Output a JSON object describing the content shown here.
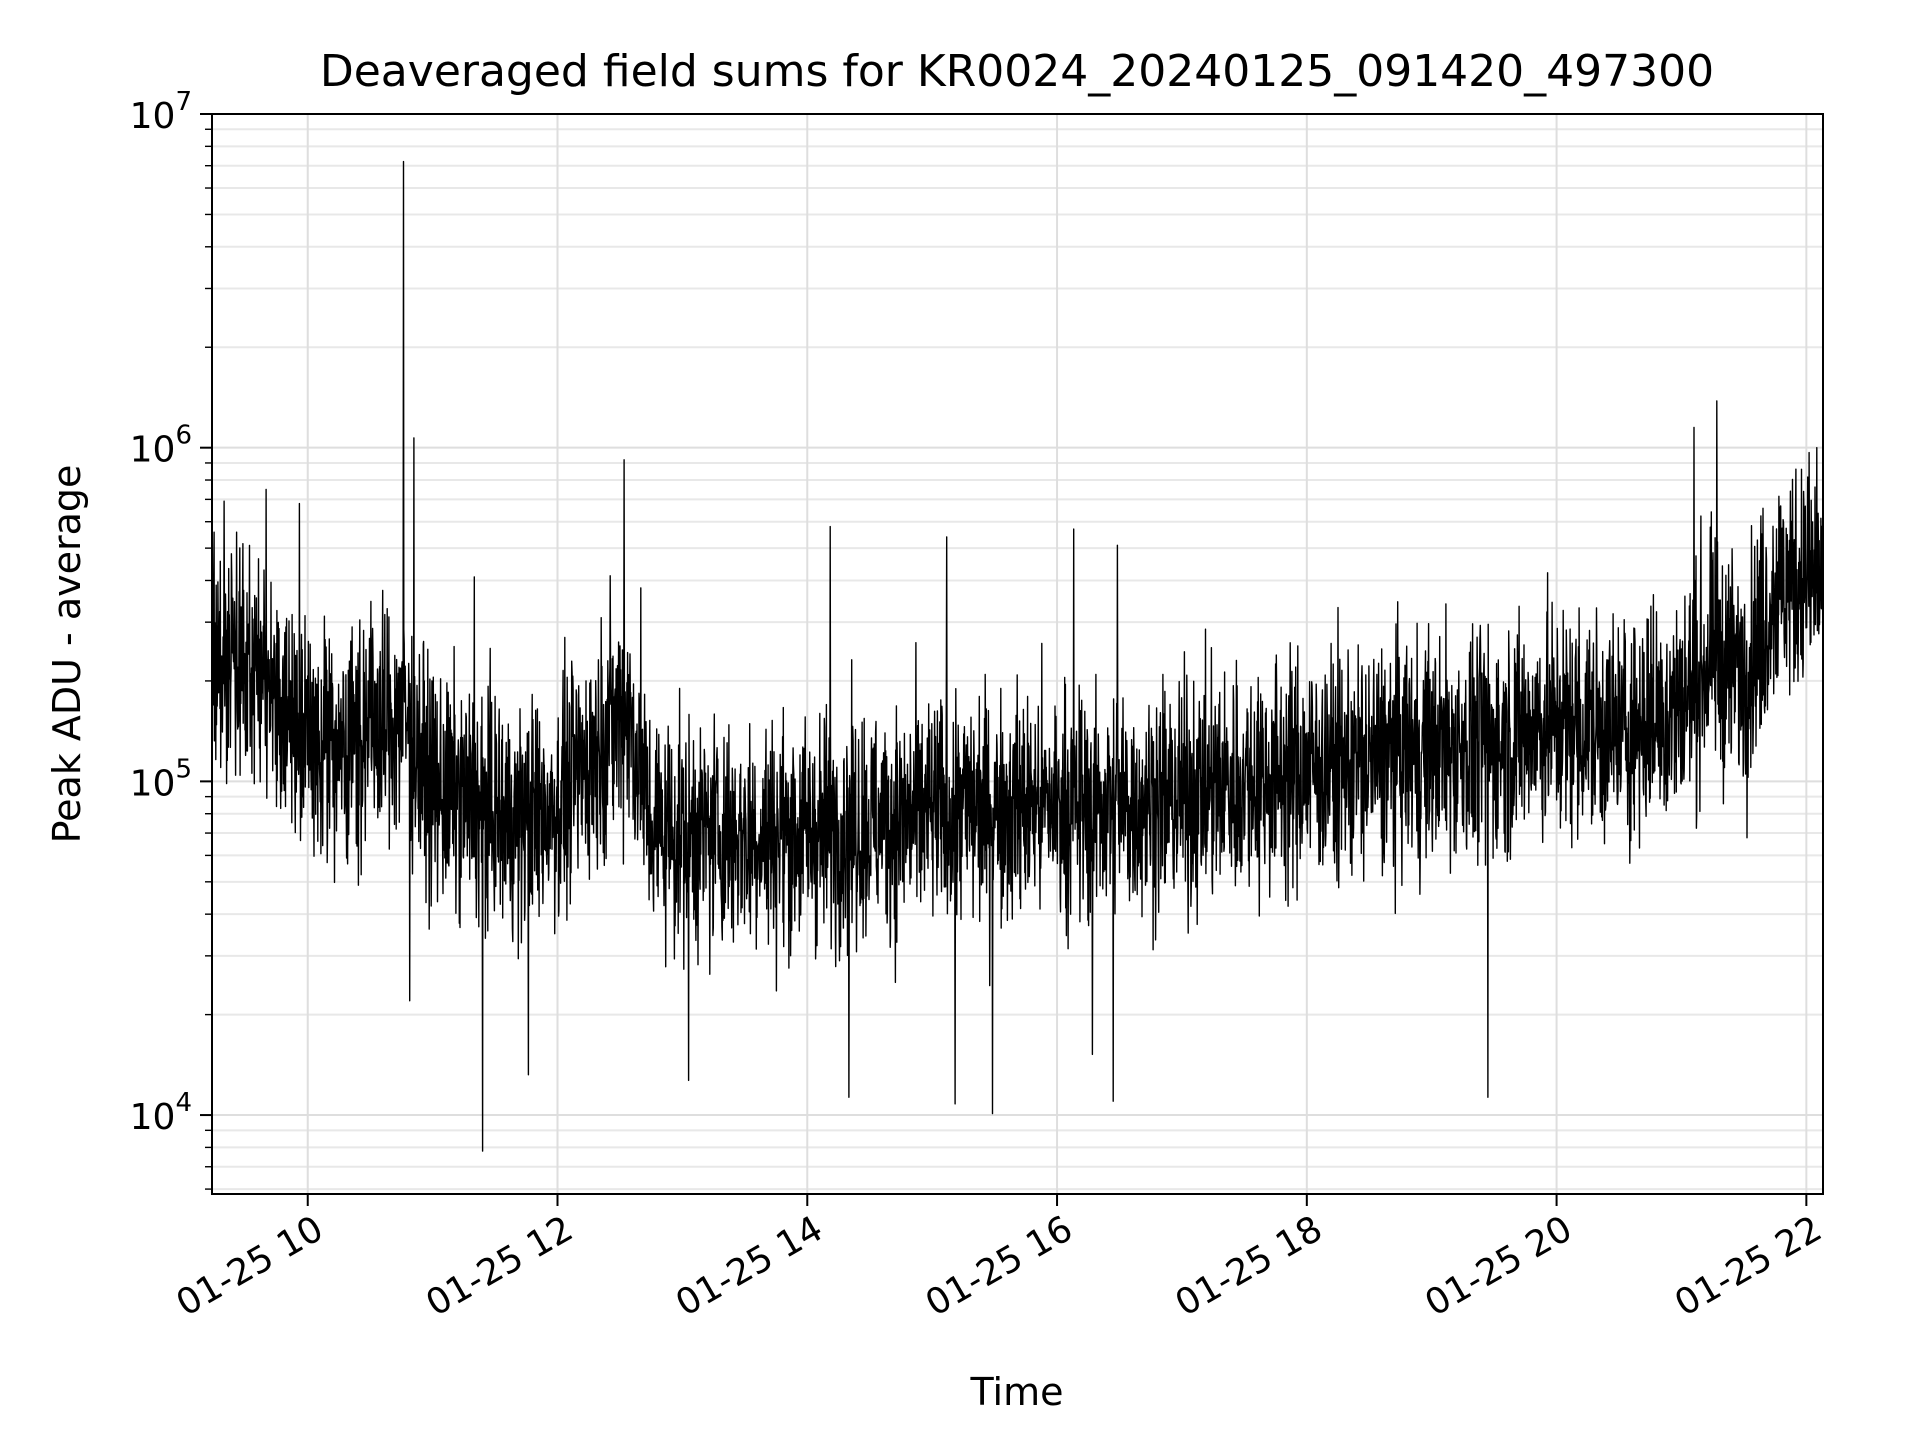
{
  "chart_data": {
    "type": "line",
    "title": "Deaveraged field sums for KR0024_20240125_091420_497300",
    "xlabel": "Time",
    "ylabel": "Peak ADU - average",
    "yscale": "log",
    "ylim": [
      5800,
      10000000
    ],
    "xlim": [
      "2024-01-25 09:14",
      "2024-01-25 22:08"
    ],
    "grid": "on",
    "line_color": "#000000",
    "x_ticks": [
      "01-25 10",
      "01-25 12",
      "01-25 14",
      "01-25 16",
      "01-25 18",
      "01-25 20",
      "01-25 22"
    ],
    "x_tick_times": [
      "2024-01-25 10:00",
      "2024-01-25 12:00",
      "2024-01-25 14:00",
      "2024-01-25 16:00",
      "2024-01-25 18:00",
      "2024-01-25 20:00",
      "2024-01-25 22:00"
    ],
    "y_ticks": [
      {
        "base": "10",
        "exp": "4",
        "value": 10000
      },
      {
        "base": "10",
        "exp": "5",
        "value": 100000
      },
      {
        "base": "10",
        "exp": "6",
        "value": 1000000
      },
      {
        "base": "10",
        "exp": "7",
        "value": 10000000
      }
    ],
    "series": [
      {
        "x": [
          "2024-01-25 09:14",
          "2024-01-25 09:30",
          "2024-01-25 09:45",
          "2024-01-25 10:00",
          "2024-01-25 10:15",
          "2024-01-25 10:30",
          "2024-01-25 10:46",
          "2024-01-25 11:00",
          "2024-01-25 11:20",
          "2024-01-25 11:40",
          "2024-01-25 12:00",
          "2024-01-25 12:20",
          "2024-01-25 12:33",
          "2024-01-25 12:45",
          "2024-01-25 13:00",
          "2024-01-25 13:30",
          "2024-01-25 14:00",
          "2024-01-25 14:30",
          "2024-01-25 15:00",
          "2024-01-25 15:30",
          "2024-01-25 16:00",
          "2024-01-25 16:30",
          "2024-01-25 17:00",
          "2024-01-25 17:30",
          "2024-01-25 18:00",
          "2024-01-25 18:30",
          "2024-01-25 19:00",
          "2024-01-25 19:30",
          "2024-01-25 20:00",
          "2024-01-25 20:30",
          "2024-01-25 21:00",
          "2024-01-25 21:15",
          "2024-01-25 21:30",
          "2024-01-25 21:45",
          "2024-01-25 22:00",
          "2024-01-25 22:08"
        ],
        "y": [
          210000,
          240000,
          170000,
          130000,
          130000,
          140000,
          160000,
          95000,
          85000,
          75000,
          85000,
          130000,
          170000,
          75000,
          70000,
          70000,
          70000,
          75000,
          80000,
          85000,
          85000,
          85000,
          90000,
          100000,
          110000,
          115000,
          125000,
          130000,
          150000,
          140000,
          170000,
          240000,
          210000,
          380000,
          410000,
          390000
        ],
        "spikes": [
          {
            "x": "2024-01-25 09:14",
            "y": 850000
          },
          {
            "x": "2024-01-25 09:40",
            "y": 750000
          },
          {
            "x": "2024-01-25 09:56",
            "y": 680000
          },
          {
            "x": "2024-01-25 10:46",
            "y": 7200000
          },
          {
            "x": "2024-01-25 10:51",
            "y": 1070000
          },
          {
            "x": "2024-01-25 11:20",
            "y": 410000
          },
          {
            "x": "2024-01-25 12:32",
            "y": 920000
          },
          {
            "x": "2024-01-25 12:40",
            "y": 380000
          },
          {
            "x": "2024-01-25 14:11",
            "y": 580000
          },
          {
            "x": "2024-01-25 15:07",
            "y": 540000
          },
          {
            "x": "2024-01-25 16:08",
            "y": 570000
          },
          {
            "x": "2024-01-25 16:29",
            "y": 510000
          },
          {
            "x": "2024-01-25 21:06",
            "y": 1150000
          },
          {
            "x": "2024-01-25 21:17",
            "y": 1380000
          },
          {
            "x": "2024-01-25 22:05",
            "y": 1000000
          },
          {
            "x": "2024-01-25 11:24",
            "y": 7800
          },
          {
            "x": "2024-01-25 13:03",
            "y": 12700
          },
          {
            "x": "2024-01-25 14:20",
            "y": 11300
          },
          {
            "x": "2024-01-25 15:11",
            "y": 10800
          },
          {
            "x": "2024-01-25 15:29",
            "y": 10100
          },
          {
            "x": "2024-01-25 16:17",
            "y": 15200
          },
          {
            "x": "2024-01-25 16:27",
            "y": 11000
          },
          {
            "x": "2024-01-25 19:27",
            "y": 11300
          },
          {
            "x": "2024-01-25 10:49",
            "y": 22000
          },
          {
            "x": "2024-01-25 11:46",
            "y": 13200
          }
        ]
      }
    ]
  }
}
